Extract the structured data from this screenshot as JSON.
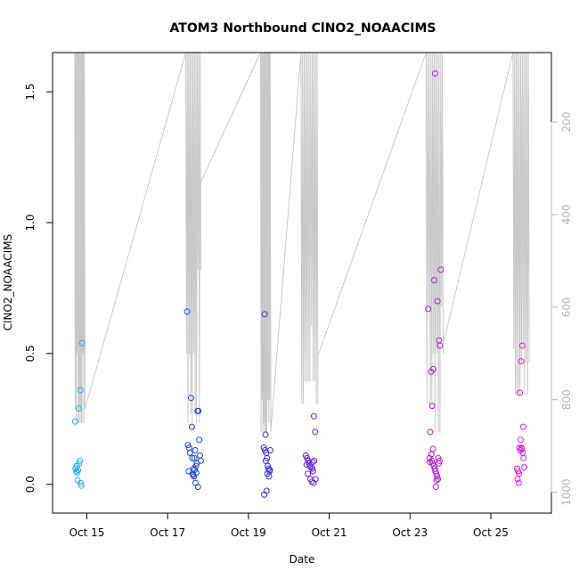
{
  "chart_data": {
    "type": "scatter",
    "title": "ATOM3 Northbound ClNO2_NOAACIMS",
    "xlabel": "Date",
    "ylabel": "ClNO2_NOAACIMS",
    "x_ticks": [
      "Oct 15",
      "Oct 17",
      "Oct 19",
      "Oct 21",
      "Oct 23",
      "Oct 25"
    ],
    "x_range_days": [
      14.15,
      26.5
    ],
    "y_ticks": [
      "0.0",
      "0.5",
      "1.0",
      "1.5"
    ],
    "ylim": [
      -0.11,
      1.65
    ],
    "y2_ticks": [
      "200",
      "400",
      "600",
      "800",
      "1000"
    ],
    "y2lim": [
      1045,
      50
    ],
    "y2_reversed": true,
    "secondary_series_color": "#c8c8c8",
    "color_gradient": [
      "#1ab0f0",
      "#1a30e0",
      "#8a16e0",
      "#e01ae0"
    ],
    "points": [
      [
        14.72,
        0.06,
        0
      ],
      [
        14.75,
        0.07,
        0
      ],
      [
        14.78,
        0.055,
        0
      ],
      [
        14.81,
        0.08,
        0
      ],
      [
        14.76,
        0.045,
        0
      ],
      [
        14.83,
        0.09,
        0
      ],
      [
        14.71,
        0.24,
        0
      ],
      [
        14.8,
        0.29,
        0
      ],
      [
        14.84,
        0.36,
        0
      ],
      [
        14.88,
        0.54,
        0
      ],
      [
        14.77,
        0.015,
        0
      ],
      [
        14.85,
        0.005,
        0
      ],
      [
        14.86,
        -0.005,
        0
      ],
      [
        14.74,
        0.05,
        0
      ],
      [
        17.48,
        0.66,
        0.28
      ],
      [
        17.5,
        0.15,
        0.28
      ],
      [
        17.53,
        0.14,
        0.28
      ],
      [
        17.55,
        0.12,
        0.28
      ],
      [
        17.58,
        0.33,
        0.28
      ],
      [
        17.6,
        0.22,
        0.28
      ],
      [
        17.52,
        0.05,
        0.28
      ],
      [
        17.62,
        0.04,
        0.28
      ],
      [
        17.64,
        0.06,
        0.28
      ],
      [
        17.66,
        0.1,
        0.28
      ],
      [
        17.68,
        0.13,
        0.28
      ],
      [
        17.7,
        0.07,
        0.28
      ],
      [
        17.72,
        0.08,
        0.28
      ],
      [
        17.74,
        0.28,
        0.28
      ],
      [
        17.76,
        0.28,
        0.28
      ],
      [
        17.78,
        0.17,
        0.28
      ],
      [
        17.8,
        0.11,
        0.28
      ],
      [
        17.82,
        0.09,
        0.28
      ],
      [
        17.65,
        0.03,
        0.28
      ],
      [
        17.71,
        0.045,
        0.28
      ],
      [
        17.69,
        0.005,
        0.28
      ],
      [
        17.75,
        -0.01,
        0.28
      ],
      [
        17.61,
        0.1,
        0.28
      ],
      [
        17.63,
        0.035,
        0.28
      ],
      [
        17.67,
        0.055,
        0.28
      ],
      [
        19.4,
        0.65,
        0.42
      ],
      [
        19.42,
        0.19,
        0.42
      ],
      [
        19.38,
        0.14,
        0.42
      ],
      [
        19.41,
        0.13,
        0.42
      ],
      [
        19.44,
        0.12,
        0.42
      ],
      [
        19.46,
        0.1,
        0.42
      ],
      [
        19.43,
        0.09,
        0.42
      ],
      [
        19.48,
        0.07,
        0.42
      ],
      [
        19.5,
        0.06,
        0.42
      ],
      [
        19.52,
        0.05,
        0.42
      ],
      [
        19.54,
        0.13,
        0.42
      ],
      [
        19.47,
        0.04,
        0.42
      ],
      [
        19.45,
        -0.025,
        0.42
      ],
      [
        19.39,
        -0.04,
        0.42
      ],
      [
        19.53,
        0.055,
        0.42
      ],
      [
        19.51,
        0.03,
        0.42
      ],
      [
        20.42,
        0.11,
        0.56
      ],
      [
        20.45,
        0.1,
        0.56
      ],
      [
        20.48,
        0.09,
        0.56
      ],
      [
        20.5,
        0.08,
        0.56
      ],
      [
        20.52,
        0.07,
        0.56
      ],
      [
        20.55,
        0.065,
        0.56
      ],
      [
        20.58,
        0.06,
        0.56
      ],
      [
        20.6,
        0.05,
        0.56
      ],
      [
        20.62,
        0.26,
        0.56
      ],
      [
        20.65,
        0.2,
        0.56
      ],
      [
        20.47,
        0.04,
        0.56
      ],
      [
        20.53,
        0.02,
        0.56
      ],
      [
        20.57,
        0.01,
        0.56
      ],
      [
        20.61,
        0.005,
        0.56
      ],
      [
        20.63,
        0.09,
        0.56
      ],
      [
        20.44,
        0.075,
        0.56
      ],
      [
        20.59,
        0.085,
        0.56
      ],
      [
        20.66,
        0.02,
        0.56
      ],
      [
        23.45,
        0.67,
        0.82
      ],
      [
        23.5,
        0.2,
        0.82
      ],
      [
        23.52,
        0.43,
        0.82
      ],
      [
        23.55,
        0.3,
        0.82
      ],
      [
        23.58,
        0.44,
        0.82
      ],
      [
        23.6,
        0.78,
        0.82
      ],
      [
        23.62,
        1.57,
        0.82
      ],
      [
        23.68,
        0.7,
        0.82
      ],
      [
        23.72,
        0.55,
        0.82
      ],
      [
        23.74,
        0.53,
        0.82
      ],
      [
        23.76,
        0.82,
        0.82
      ],
      [
        23.48,
        0.1,
        0.82
      ],
      [
        23.54,
        0.09,
        0.82
      ],
      [
        23.56,
        0.08,
        0.82
      ],
      [
        23.59,
        0.07,
        0.82
      ],
      [
        23.61,
        0.06,
        0.82
      ],
      [
        23.63,
        0.05,
        0.82
      ],
      [
        23.65,
        0.04,
        0.82
      ],
      [
        23.67,
        0.03,
        0.82
      ],
      [
        23.69,
        0.02,
        0.82
      ],
      [
        23.7,
        0.1,
        0.82
      ],
      [
        23.71,
        0.08,
        0.82
      ],
      [
        23.66,
        0.015,
        0.82
      ],
      [
        23.64,
        -0.01,
        0.82
      ],
      [
        23.57,
        0.135,
        0.82
      ],
      [
        23.53,
        0.115,
        0.82
      ],
      [
        23.49,
        0.085,
        0.82
      ],
      [
        23.73,
        0.09,
        0.82
      ],
      [
        25.65,
        0.06,
        1
      ],
      [
        25.68,
        0.05,
        1
      ],
      [
        25.7,
        0.04,
        1
      ],
      [
        25.72,
        0.35,
        1
      ],
      [
        25.75,
        0.47,
        1
      ],
      [
        25.78,
        0.53,
        1
      ],
      [
        25.8,
        0.22,
        1
      ],
      [
        25.74,
        0.17,
        1
      ],
      [
        25.76,
        0.14,
        1
      ],
      [
        25.79,
        0.12,
        1
      ],
      [
        25.81,
        0.1,
        1
      ],
      [
        25.83,
        0.065,
        1
      ],
      [
        25.66,
        0.02,
        1
      ],
      [
        25.69,
        0.005,
        1
      ],
      [
        25.71,
        0.14,
        1
      ],
      [
        25.77,
        0.135,
        1
      ],
      [
        25.73,
        0.13,
        1
      ]
    ]
  }
}
